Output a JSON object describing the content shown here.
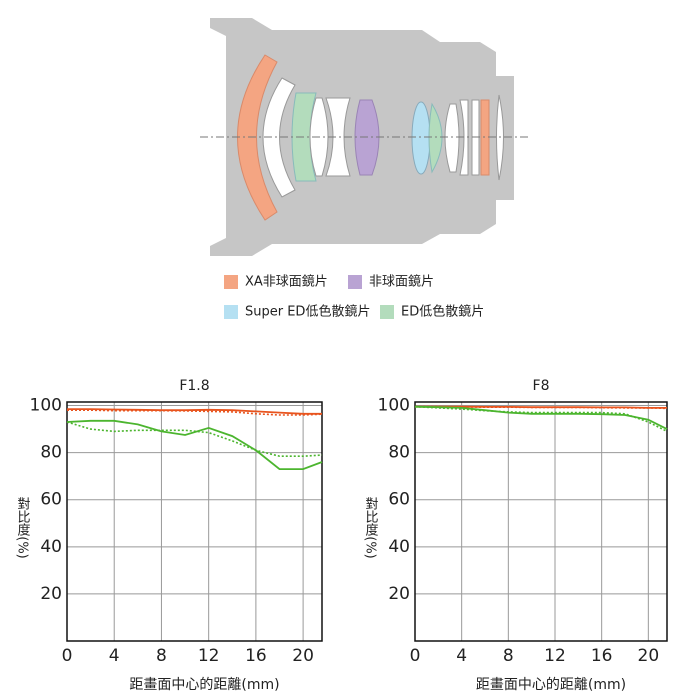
{
  "lens_legend": [
    {
      "label": "XA非球面鏡片",
      "color": "#f4a582"
    },
    {
      "label": "非球面鏡片",
      "color": "#b9a3d3"
    },
    {
      "label": "Super ED低色散鏡片",
      "color": "#b5e0f2"
    },
    {
      "label": "ED低色散鏡片",
      "color": "#b3dcbc"
    }
  ],
  "chart_data": [
    {
      "type": "line",
      "title": "F1.8",
      "x_label": "距畫面中心的距離(mm)",
      "y_label": "對比度(%)",
      "x": [
        0,
        2,
        4,
        6,
        8,
        10,
        12,
        14,
        16,
        18,
        20,
        21.6
      ],
      "series": [
        {
          "color": "#e8541e",
          "line_style": "solid",
          "values": [
            98.5,
            98.5,
            98.3,
            98.2,
            98,
            98,
            98.2,
            98,
            97.5,
            97,
            96.5,
            96.5
          ]
        },
        {
          "color": "#e8541e",
          "line_style": "dotted",
          "values": [
            98,
            98,
            97.8,
            97.8,
            97.8,
            97.7,
            97.5,
            97.3,
            96.5,
            96,
            96,
            96.3
          ]
        },
        {
          "color": "#4cb52f",
          "line_style": "solid",
          "values": [
            93,
            93.5,
            93.5,
            92,
            89,
            87.5,
            90.5,
            87,
            81,
            73,
            73,
            76
          ]
        },
        {
          "color": "#4cb52f",
          "line_style": "dotted",
          "values": [
            93,
            90,
            89,
            89.5,
            89.5,
            89.5,
            88.5,
            85,
            81,
            78.5,
            78.5,
            79
          ]
        }
      ],
      "xlim": [
        0,
        21.6
      ],
      "ylim": [
        0,
        101.5
      ],
      "xticks": [
        0,
        4,
        8,
        12,
        16,
        20
      ],
      "yticks": [
        20,
        40,
        60,
        80,
        100
      ],
      "grid": true
    },
    {
      "type": "line",
      "title": "F8",
      "x_label": "距畫面中心的距離(mm)",
      "y_label": "對比度(%)",
      "x": [
        0,
        2,
        4,
        6,
        8,
        10,
        12,
        14,
        16,
        18,
        20,
        21.6
      ],
      "series": [
        {
          "color": "#e8541e",
          "line_style": "solid",
          "values": [
            99.5,
            99.5,
            99.5,
            99.4,
            99.4,
            99.3,
            99.3,
            99.3,
            99.2,
            99.2,
            99,
            99
          ]
        },
        {
          "color": "#e8541e",
          "line_style": "dotted",
          "values": [
            99.5,
            99.5,
            99.4,
            99.3,
            99.3,
            99.2,
            99.2,
            99.2,
            99.1,
            99,
            99,
            98.8
          ]
        },
        {
          "color": "#4cb52f",
          "line_style": "solid",
          "values": [
            99.5,
            99.3,
            99,
            98,
            97,
            96.5,
            96.5,
            96.5,
            96.3,
            96,
            94,
            90
          ]
        },
        {
          "color": "#4cb52f",
          "line_style": "dotted",
          "values": [
            99.5,
            99,
            98.5,
            97.8,
            97.3,
            97,
            97,
            97,
            97,
            96.5,
            93,
            89
          ]
        }
      ],
      "xlim": [
        0,
        21.6
      ],
      "ylim": [
        0,
        101.5
      ],
      "xticks": [
        0,
        4,
        8,
        12,
        16,
        20
      ],
      "yticks": [
        20,
        40,
        60,
        80,
        100
      ],
      "grid": true
    }
  ]
}
